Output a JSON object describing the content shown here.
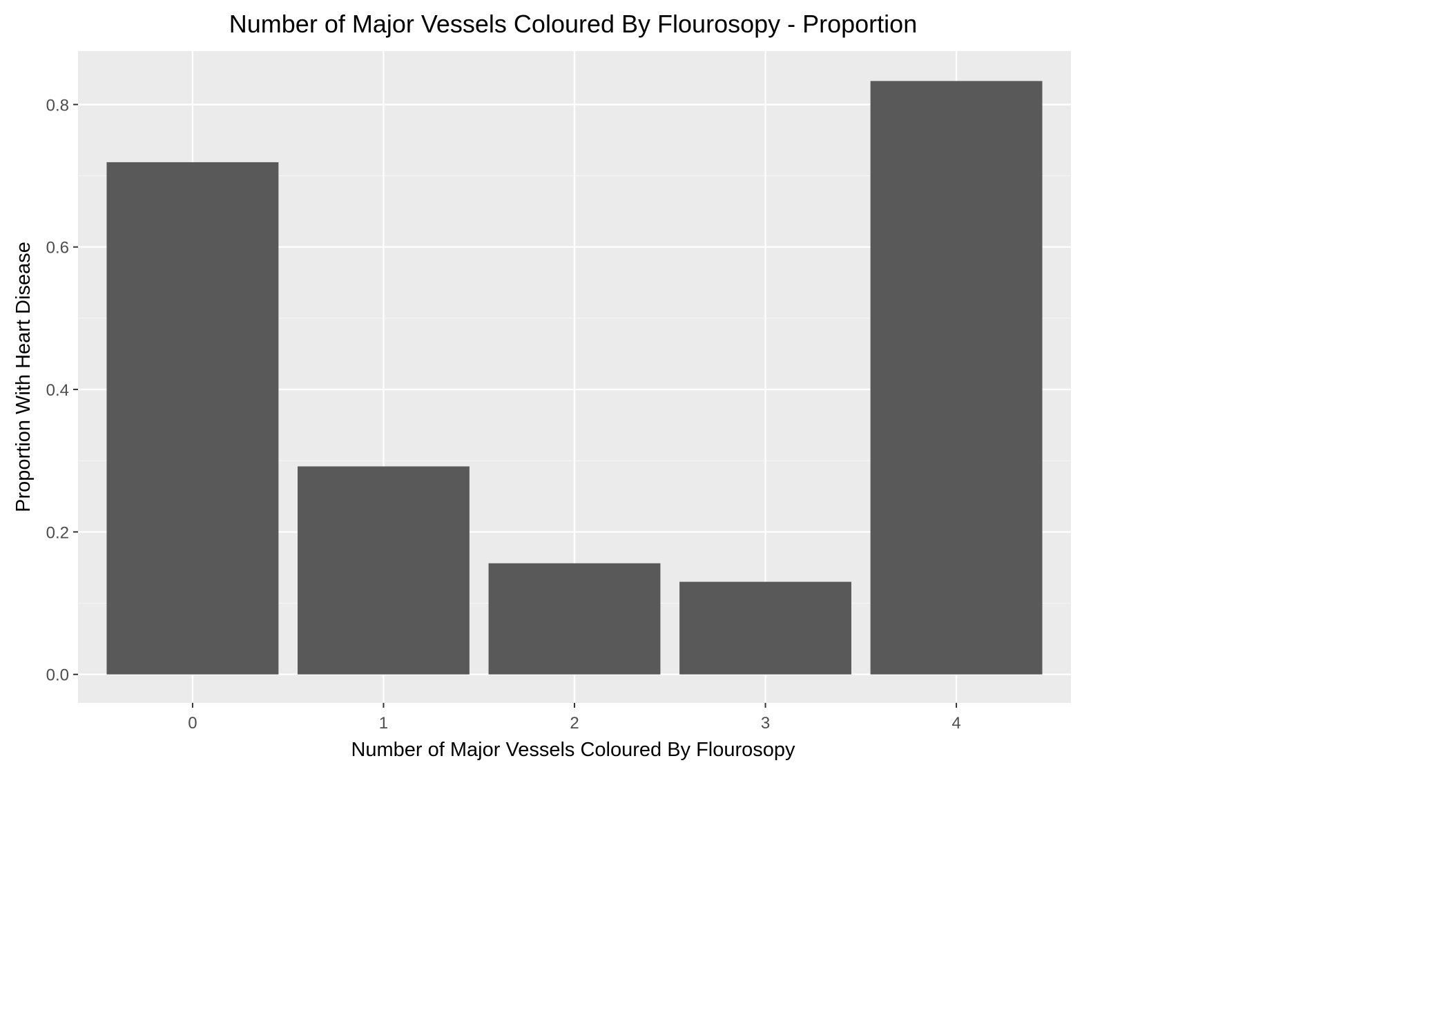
{
  "chart_data": {
    "type": "bar",
    "title": "Number of Major Vessels Coloured By Flourosopy - Proportion",
    "xlabel": "Number of Major Vessels Coloured By Flourosopy",
    "ylabel": "Proportion With Heart Disease",
    "categories": [
      "0",
      "1",
      "2",
      "3",
      "4"
    ],
    "values": [
      0.719,
      0.292,
      0.156,
      0.13,
      0.833
    ],
    "yticks": [
      0.0,
      0.2,
      0.4,
      0.6,
      0.8
    ],
    "ytick_labels": [
      "0.0",
      "0.2",
      "0.4",
      "0.6",
      "0.8"
    ],
    "ylim": [
      -0.04,
      0.875
    ],
    "grid": true,
    "legend": "none",
    "colors": {
      "bar": "#595959",
      "panel": "#ebebeb",
      "grid_major": "#ffffff",
      "grid_minor": "#f6f6f6",
      "text": "#000000",
      "tick_text": "#4d4d4d",
      "tick_mark": "#333333"
    }
  }
}
